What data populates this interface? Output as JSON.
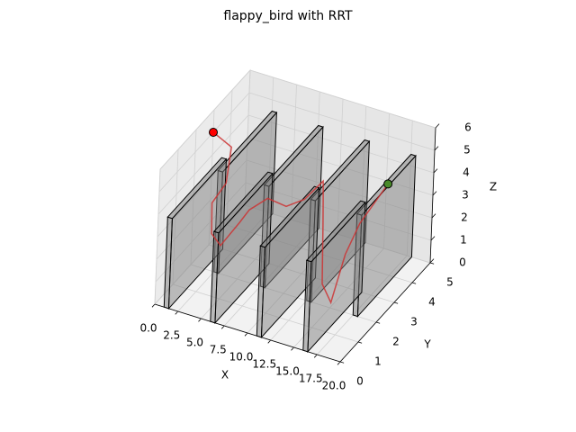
{
  "chart_data": {
    "type": "line3d",
    "title": "flappy_bird with RRT",
    "xlabel": "X",
    "ylabel": "Y",
    "zlabel": "Z",
    "xlim": [
      0,
      20
    ],
    "ylim": [
      0,
      5
    ],
    "zlim": [
      0,
      6
    ],
    "xticks": [
      {
        "value": 0,
        "label": "0.0"
      },
      2.5,
      {
        "value": 5,
        "label": "5.0"
      },
      7.5,
      {
        "value": 10,
        "label": "10.0"
      },
      12.5,
      {
        "value": 15,
        "label": "15.0"
      },
      17.5,
      {
        "value": 20,
        "label": "20.0"
      }
    ],
    "yticks": [
      0,
      1,
      2,
      3,
      4,
      5
    ],
    "zticks": [
      0,
      1,
      2,
      3,
      4,
      5,
      6
    ],
    "grid": true,
    "obstacle_color": "#808080",
    "obstacles": [
      [
        1,
        1.5,
        0,
        3,
        0,
        4
      ],
      [
        2.5,
        3,
        2,
        5,
        0,
        4.5
      ],
      [
        6,
        6.5,
        0,
        3,
        0,
        4
      ],
      [
        7.5,
        8,
        2,
        5,
        0,
        4.5
      ],
      [
        11,
        11.5,
        0,
        3,
        0,
        4
      ],
      [
        12.5,
        13,
        2,
        5,
        0,
        4.5
      ],
      [
        16,
        16.5,
        0,
        3,
        0,
        4
      ],
      [
        17.5,
        18,
        2,
        5,
        0,
        4.5
      ]
    ],
    "path": {
      "name": "path",
      "color": "#cc3333",
      "x": [
        0,
        1,
        2,
        2.5,
        2,
        3,
        4,
        5,
        6,
        7,
        9,
        10,
        11,
        12,
        13,
        14,
        15,
        16,
        15.5,
        16,
        17
      ],
      "y": [
        3,
        3,
        3,
        2.5,
        2,
        1.5,
        1.5,
        2,
        2,
        2.5,
        2.5,
        3,
        3.5,
        3,
        2.5,
        2,
        1.5,
        1.5,
        2.5,
        3,
        4
      ],
      "z": [
        5,
        4.8,
        4.6,
        3.5,
        3,
        2.2,
        1.8,
        2.5,
        3.2,
        3.4,
        3.3,
        3.3,
        3.8,
        3.5,
        3,
        2.2,
        1.5,
        0.8,
        2,
        3,
        4
      ]
    },
    "start": {
      "name": "start",
      "color": "#ff0000",
      "x": 0,
      "y": 3,
      "z": 5
    },
    "goal": {
      "name": "goal",
      "color": "#4a8a2a",
      "x": 17,
      "y": 4,
      "z": 4
    }
  }
}
